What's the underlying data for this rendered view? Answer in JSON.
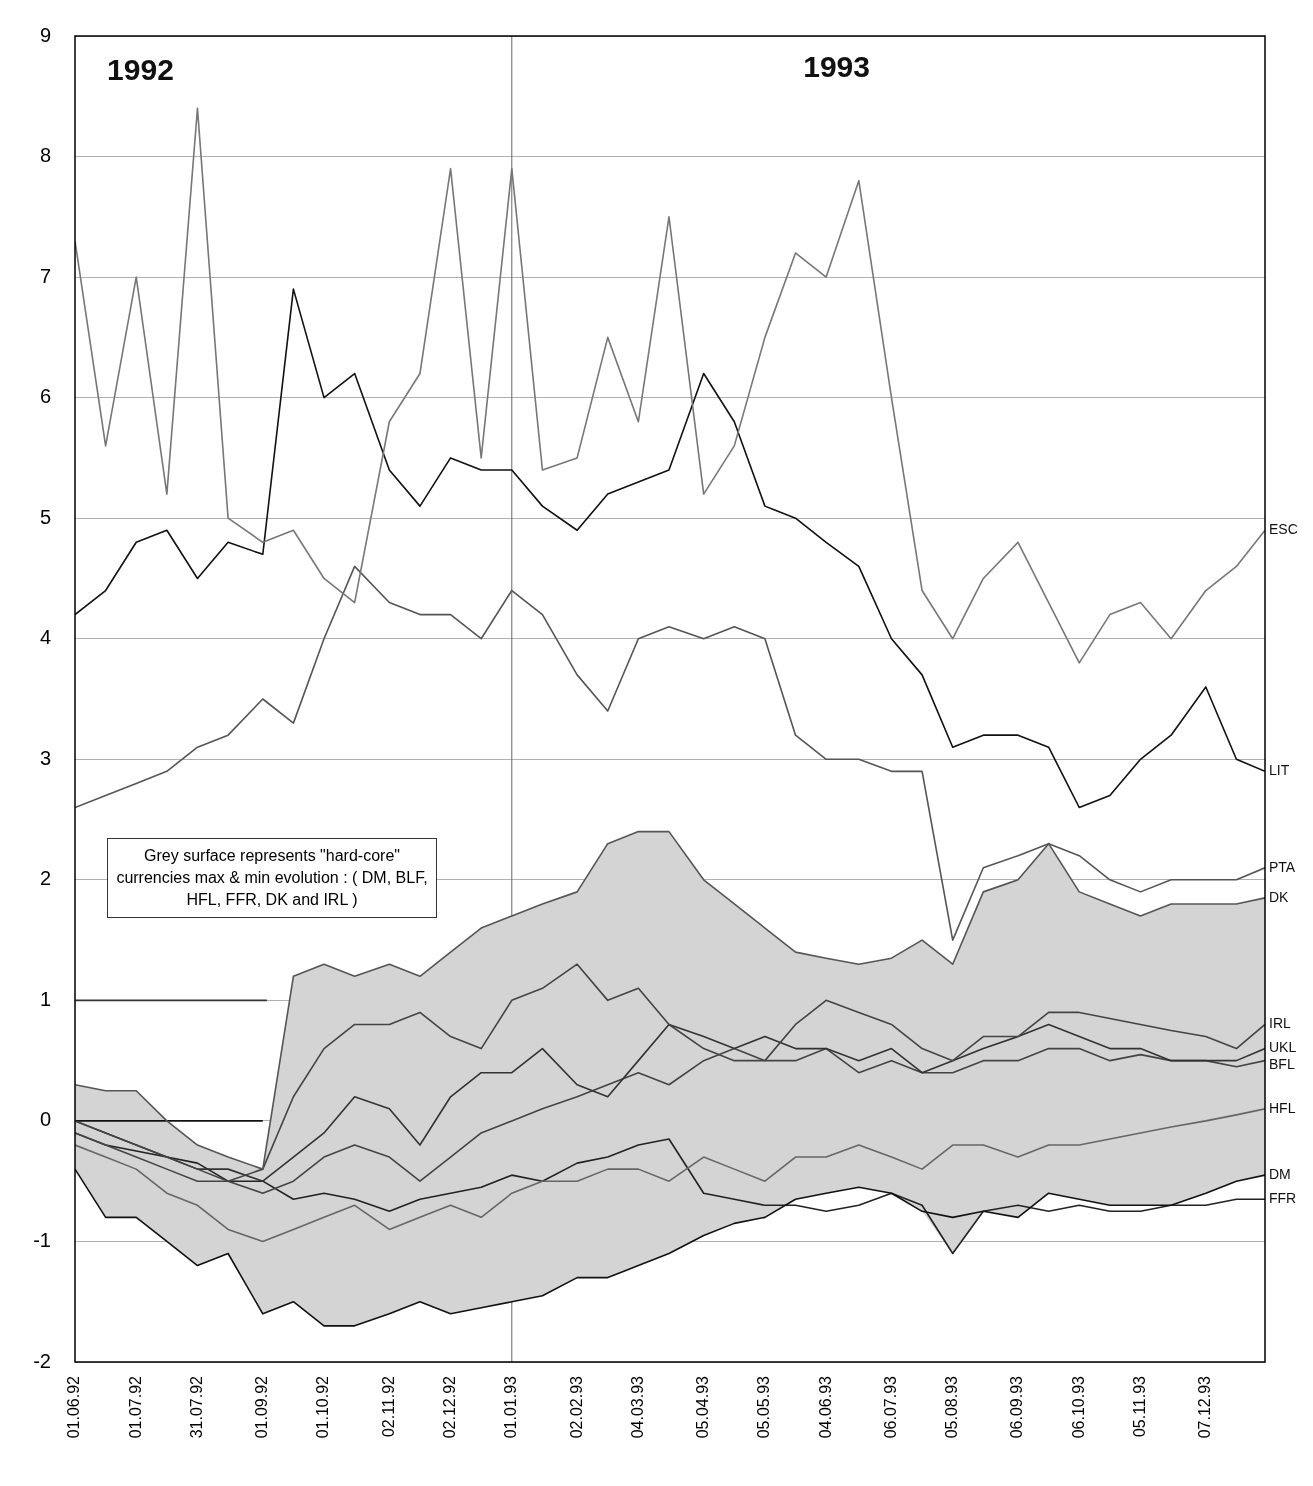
{
  "chart_data": {
    "type": "line",
    "annotations": [
      "1992",
      "1993",
      "Grey surface represents \"hard-core\" currencies max & min evolution : ( DM, BLF, HFL, FFR, DK and IRL )"
    ],
    "x": [
      "1992-06-01",
      "1992-06-16",
      "1992-07-01",
      "1992-07-16",
      "1992-07-31",
      "1992-08-15",
      "1992-09-01",
      "1992-09-16",
      "1992-10-01",
      "1992-10-16",
      "1992-11-02",
      "1992-11-17",
      "1992-12-02",
      "1992-12-17",
      "1993-01-01",
      "1993-01-16",
      "1993-02-02",
      "1993-02-17",
      "1993-03-04",
      "1993-03-19",
      "1993-04-05",
      "1993-04-20",
      "1993-05-05",
      "1993-05-20",
      "1993-06-04",
      "1993-06-20",
      "1993-07-06",
      "1993-07-21",
      "1993-08-05",
      "1993-08-20",
      "1993-09-06",
      "1993-09-21",
      "1993-10-06",
      "1993-10-21",
      "1993-11-05",
      "1993-11-20",
      "1993-12-07",
      "1993-12-22",
      "1994-01-05"
    ],
    "series": [
      {
        "color": "#d4d4d4",
        "values": [
          null,
          null,
          null,
          null,
          null,
          null,
          null,
          null,
          null,
          null,
          null,
          null,
          null,
          null,
          null,
          null,
          null,
          null,
          null,
          null,
          null,
          null,
          null,
          null,
          null,
          null,
          null,
          null,
          null,
          null,
          null,
          null,
          null,
          null,
          null,
          null,
          null,
          null,
          null
        ],
        "upper": [
          0.3,
          0.25,
          0.25,
          0.0,
          -0.2,
          -0.3,
          -0.4,
          1.2,
          1.3,
          1.2,
          1.3,
          1.2,
          1.4,
          1.6,
          1.7,
          1.8,
          1.9,
          2.3,
          2.4,
          2.4,
          2.0,
          1.8,
          1.6,
          1.4,
          1.35,
          1.3,
          1.35,
          1.5,
          1.3,
          1.9,
          2.0,
          2.3,
          1.9,
          1.8,
          1.7,
          1.8,
          1.8,
          1.8,
          1.85
        ],
        "lower": [
          -0.4,
          -0.8,
          -0.8,
          -1.0,
          -1.2,
          -1.1,
          -1.6,
          -1.5,
          -1.7,
          -1.7,
          -1.6,
          -1.5,
          -1.6,
          -1.55,
          -1.5,
          -1.45,
          -1.3,
          -1.3,
          -1.2,
          -1.1,
          -0.95,
          -0.85,
          -0.8,
          -0.65,
          -0.6,
          -0.55,
          -0.6,
          -0.75,
          -1.1,
          -0.75,
          -0.8,
          -0.6,
          -0.65,
          -0.7,
          -0.7,
          -0.7,
          -0.6,
          -0.5,
          -0.45
        ]
      },
      {
        "name": "ESC",
        "color": "#777777",
        "values": [
          7.3,
          5.6,
          7.0,
          5.2,
          8.4,
          5.0,
          4.8,
          4.9,
          4.5,
          4.3,
          5.8,
          6.2,
          7.9,
          5.5,
          7.9,
          5.4,
          5.5,
          6.5,
          5.8,
          7.5,
          5.2,
          5.6,
          6.5,
          7.2,
          7.0,
          7.8,
          6.0,
          4.4,
          4.0,
          4.5,
          4.8,
          4.3,
          3.8,
          4.2,
          4.3,
          4.0,
          4.4,
          4.6,
          4.9
        ]
      },
      {
        "name": "LIT",
        "color": "#111111",
        "values": [
          4.2,
          4.4,
          4.8,
          4.9,
          4.5,
          4.8,
          4.7,
          6.9,
          6.0,
          6.2,
          5.4,
          5.1,
          5.5,
          5.4,
          5.4,
          5.1,
          4.9,
          5.2,
          5.3,
          5.4,
          6.2,
          5.8,
          5.1,
          5.0,
          4.8,
          4.6,
          4.0,
          3.7,
          3.1,
          3.2,
          3.2,
          3.1,
          2.6,
          2.7,
          3.0,
          3.2,
          3.6,
          3.0,
          2.9
        ]
      },
      {
        "name": "PTA",
        "color": "#555555",
        "values": [
          2.6,
          2.7,
          2.8,
          2.9,
          3.1,
          3.2,
          3.5,
          3.3,
          4.0,
          4.6,
          4.3,
          4.2,
          4.2,
          4.0,
          4.4,
          4.2,
          3.7,
          3.4,
          4.0,
          4.1,
          4.0,
          4.1,
          4.0,
          3.2,
          3.0,
          3.0,
          2.9,
          2.9,
          1.5,
          2.1,
          2.2,
          2.3,
          2.2,
          2.0,
          1.9,
          2.0,
          2.0,
          2.0,
          2.1
        ]
      },
      {
        "name": "DK",
        "color": "#555555",
        "values": [
          0.3,
          0.25,
          0.25,
          0.0,
          -0.2,
          -0.3,
          -0.4,
          1.2,
          1.3,
          1.2,
          1.3,
          1.2,
          1.4,
          1.6,
          1.7,
          1.8,
          1.9,
          2.3,
          2.4,
          2.4,
          2.0,
          1.8,
          1.6,
          1.4,
          1.35,
          1.3,
          1.35,
          1.5,
          1.3,
          1.9,
          2.0,
          2.3,
          1.9,
          1.8,
          1.7,
          1.8,
          1.8,
          1.8,
          1.85
        ]
      },
      {
        "name": "IRL",
        "color": "#444444",
        "values": [
          0.0,
          -0.1,
          -0.2,
          -0.3,
          -0.4,
          -0.5,
          -0.4,
          0.2,
          0.6,
          0.8,
          0.8,
          0.9,
          0.7,
          0.6,
          1.0,
          1.1,
          1.3,
          1.0,
          1.1,
          0.8,
          0.6,
          0.5,
          0.5,
          0.8,
          1.0,
          0.9,
          0.8,
          0.6,
          0.5,
          0.7,
          0.7,
          0.9,
          0.9,
          0.85,
          0.8,
          0.75,
          0.7,
          0.6,
          0.8
        ]
      },
      {
        "name": "UKL",
        "color": "#333333",
        "values": [
          0.0,
          -0.1,
          -0.2,
          -0.3,
          -0.4,
          -0.4,
          -0.5,
          -0.3,
          -0.1,
          0.2,
          0.1,
          -0.2,
          0.2,
          0.4,
          0.4,
          0.6,
          0.3,
          0.2,
          0.5,
          0.8,
          0.7,
          0.6,
          0.7,
          0.6,
          0.6,
          0.5,
          0.6,
          0.4,
          0.5,
          0.6,
          0.7,
          0.8,
          0.7,
          0.6,
          0.6,
          0.5,
          0.5,
          0.5,
          0.6
        ]
      },
      {
        "name": "BFL",
        "color": "#444444",
        "values": [
          -0.1,
          -0.2,
          -0.3,
          -0.4,
          -0.5,
          -0.5,
          -0.6,
          -0.5,
          -0.3,
          -0.2,
          -0.3,
          -0.5,
          -0.3,
          -0.1,
          0.0,
          0.1,
          0.2,
          0.3,
          0.4,
          0.3,
          0.5,
          0.6,
          0.5,
          0.5,
          0.6,
          0.4,
          0.5,
          0.4,
          0.4,
          0.5,
          0.5,
          0.6,
          0.6,
          0.5,
          0.55,
          0.5,
          0.5,
          0.45,
          0.5
        ]
      },
      {
        "name": "HFL",
        "color": "#666666",
        "values": [
          -0.2,
          -0.3,
          -0.4,
          -0.6,
          -0.7,
          -0.9,
          -1.0,
          -0.9,
          -0.8,
          -0.7,
          -0.9,
          -0.8,
          -0.7,
          -0.8,
          -0.6,
          -0.5,
          -0.5,
          -0.4,
          -0.4,
          -0.5,
          -0.3,
          -0.4,
          -0.5,
          -0.3,
          -0.3,
          -0.2,
          -0.3,
          -0.4,
          -0.2,
          -0.2,
          -0.3,
          -0.2,
          -0.2,
          -0.15,
          -0.1,
          -0.05,
          0.0,
          0.05,
          0.1
        ]
      },
      {
        "name": "DM",
        "color": "#111111",
        "values": [
          -0.4,
          -0.8,
          -0.8,
          -1.0,
          -1.2,
          -1.1,
          -1.6,
          -1.5,
          -1.7,
          -1.7,
          -1.6,
          -1.5,
          -1.6,
          -1.55,
          -1.5,
          -1.45,
          -1.3,
          -1.3,
          -1.2,
          -1.1,
          -0.95,
          -0.85,
          -0.8,
          -0.65,
          -0.6,
          -0.55,
          -0.6,
          -0.75,
          -0.8,
          -0.75,
          -0.8,
          -0.6,
          -0.65,
          -0.7,
          -0.7,
          -0.7,
          -0.6,
          -0.5,
          -0.45
        ]
      },
      {
        "name": "FFR",
        "color": "#222222",
        "values": [
          -0.1,
          -0.2,
          -0.25,
          -0.3,
          -0.35,
          -0.5,
          -0.5,
          -0.65,
          -0.6,
          -0.65,
          -0.75,
          -0.65,
          -0.6,
          -0.55,
          -0.45,
          -0.5,
          -0.35,
          -0.3,
          -0.2,
          -0.15,
          -0.6,
          -0.65,
          -0.7,
          -0.7,
          -0.75,
          -0.7,
          -0.6,
          -0.7,
          -1.1,
          -0.75,
          -0.7,
          -0.75,
          -0.7,
          -0.75,
          -0.75,
          -0.7,
          -0.7,
          -0.65,
          -0.65
        ]
      },
      {
        "color": "#111111",
        "x": [
          "1992-06-01",
          "1992-09-01"
        ],
        "values": [
          0,
          0
        ]
      },
      {
        "color": "#333333",
        "x": [
          "1992-06-01",
          "1992-09-03"
        ],
        "values": [
          1,
          1
        ]
      }
    ],
    "xlim": [
      "1992-06-01",
      "1994-01-05"
    ],
    "xticks": [
      {
        "value": "1992-06-01",
        "label": "01.06.92"
      },
      {
        "value": "1992-07-01",
        "label": "01.07.92"
      },
      {
        "value": "1992-07-31",
        "label": "31.07.92"
      },
      {
        "value": "1992-09-01",
        "label": "01.09.92"
      },
      {
        "value": "1992-10-01",
        "label": "01.10.92"
      },
      {
        "value": "1992-11-02",
        "label": "02.11.92"
      },
      {
        "value": "1992-12-02",
        "label": "02.12.92"
      },
      {
        "value": "1993-01-01",
        "label": "01.01.93"
      },
      {
        "value": "1993-02-02",
        "label": "02.02.93"
      },
      {
        "value": "1993-03-04",
        "label": "04.03.93"
      },
      {
        "value": "1993-04-05",
        "label": "05.04.93"
      },
      {
        "value": "1993-05-05",
        "label": "05.05.93"
      },
      {
        "value": "1993-06-04",
        "label": "04.06.93"
      },
      {
        "value": "1993-07-06",
        "label": "06.07.93"
      },
      {
        "value": "1993-08-05",
        "label": "05.08.93"
      },
      {
        "value": "1993-09-06",
        "label": "06.09.93"
      },
      {
        "value": "1993-10-06",
        "label": "06.10.93"
      },
      {
        "value": "1993-11-05",
        "label": "05.11.93"
      },
      {
        "value": "1993-12-07",
        "label": "07.12.93"
      }
    ],
    "ylim": [
      -2,
      9
    ],
    "yticks": [
      -2,
      -1,
      0,
      1,
      2,
      3,
      4,
      5,
      6,
      7,
      8,
      9
    ],
    "ref_lines": [
      {
        "axis": "x",
        "value": "1993-01-01",
        "color": "#666666"
      }
    ],
    "grid": "y",
    "legend": false
  }
}
